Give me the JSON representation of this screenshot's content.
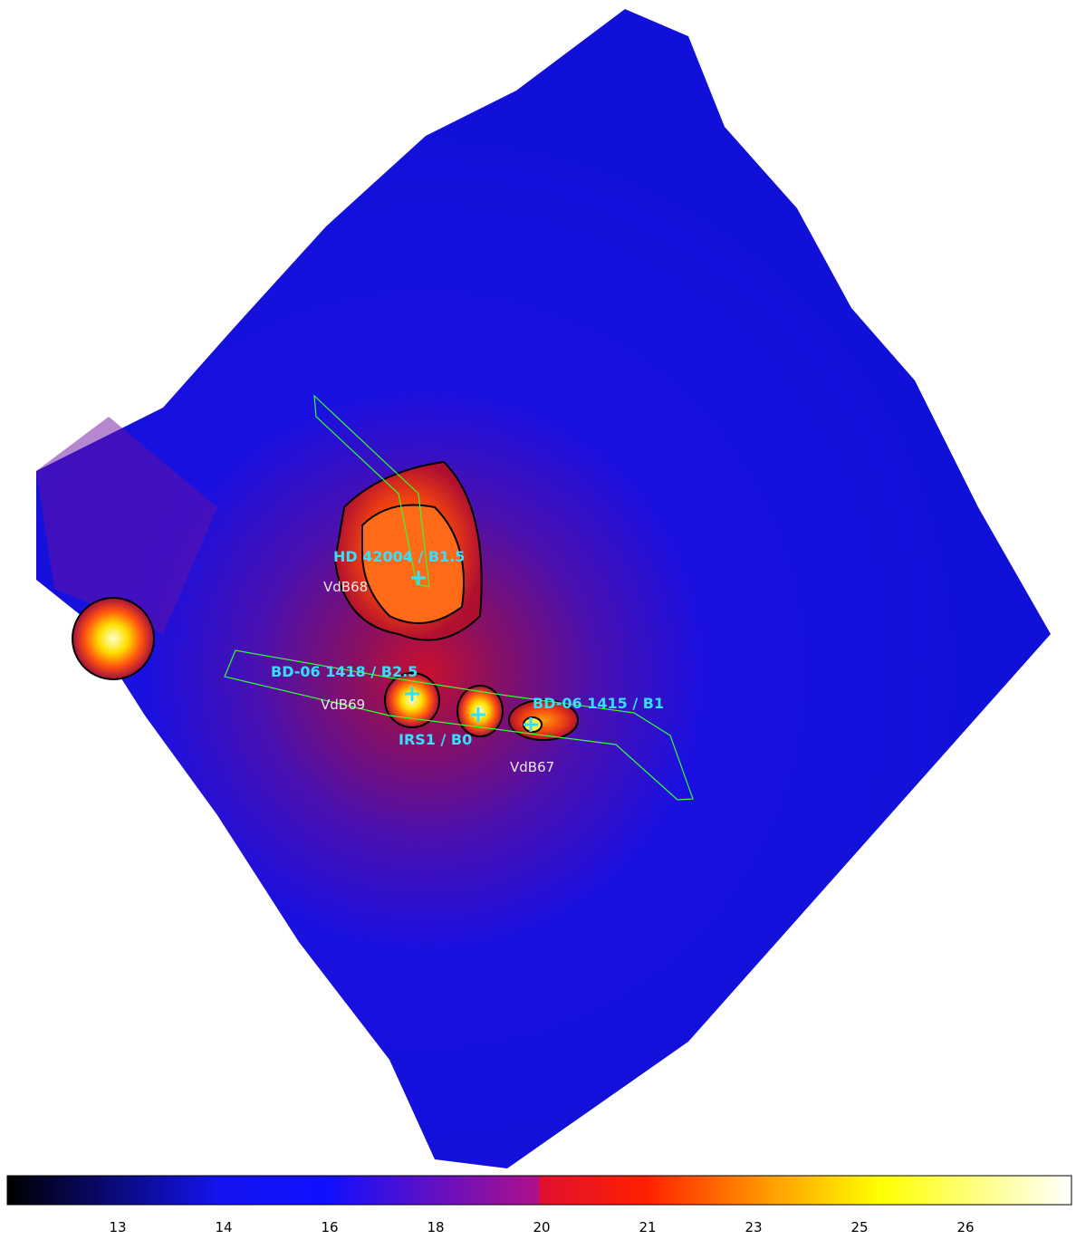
{
  "sources": [
    {
      "name": "HD 42004 / B1.5",
      "nebula": "VdB68"
    },
    {
      "name": "BD-06 1418 / B2.5",
      "nebula": "VdB69"
    },
    {
      "name": "IRS1 / B0"
    },
    {
      "name": "BD-06 1415 / B1",
      "nebula": "VdB67"
    }
  ],
  "colorbar": {
    "ticks": [
      "13",
      "14",
      "16",
      "18",
      "20",
      "21",
      "23",
      "25",
      "26"
    ]
  }
}
